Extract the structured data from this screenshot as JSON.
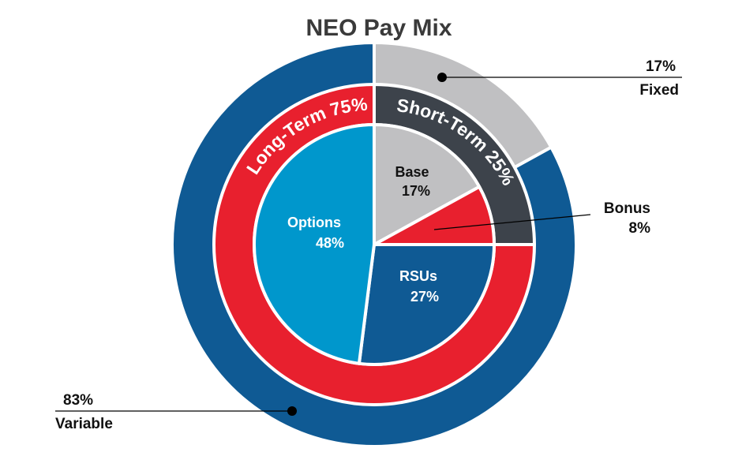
{
  "chart_data": {
    "type": "pie",
    "title": "NEO Pay Mix",
    "colors": {
      "fixed": "#c0c0c2",
      "variable": "#0f5a94",
      "long_term": "#e8202e",
      "short_term": "#3d434b",
      "base": "#c0c0c2",
      "bonus": "#e8202e",
      "rsus": "#0f5a94",
      "options": "#0097cc"
    },
    "rings": [
      {
        "name": "outer",
        "slices": [
          {
            "key": "fixed",
            "label": "Fixed",
            "value": 17,
            "value_label": "17%"
          },
          {
            "key": "variable",
            "label": "Variable",
            "value": 83,
            "value_label": "83%"
          }
        ]
      },
      {
        "name": "middle",
        "slices": [
          {
            "key": "short_term",
            "label": "Short-Term 25%",
            "value": 25
          },
          {
            "key": "long_term",
            "label": "Long-Term 75%",
            "value": 75
          }
        ]
      },
      {
        "name": "inner",
        "slices": [
          {
            "key": "base",
            "label": "Base",
            "value": 17,
            "value_label": "17%"
          },
          {
            "key": "bonus",
            "label": "Bonus",
            "value": 8,
            "value_label": "8%"
          },
          {
            "key": "rsus",
            "label": "RSUs",
            "value": 27,
            "value_label": "27%"
          },
          {
            "key": "options",
            "label": "Options",
            "value": 48,
            "value_label": "48%"
          }
        ]
      }
    ]
  }
}
